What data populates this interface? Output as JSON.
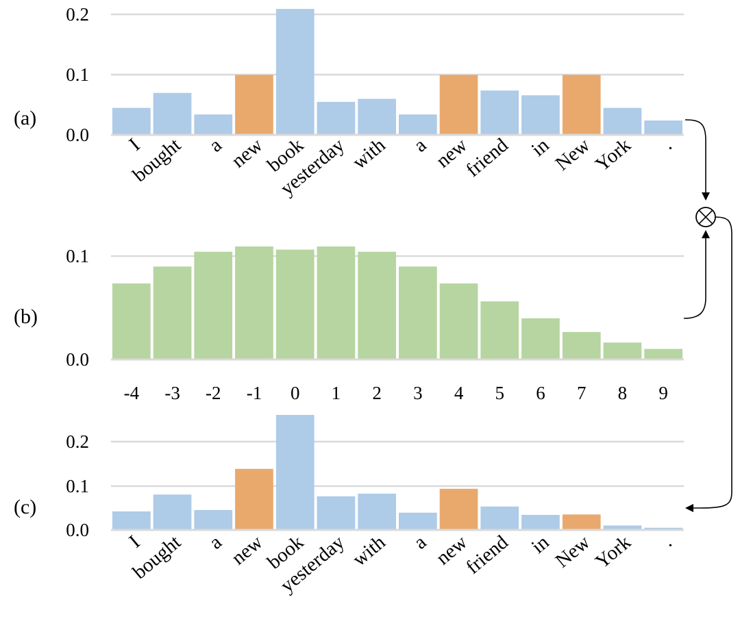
{
  "colors": {
    "default_bar": "#aecbe8",
    "highlight_bar": "#e9a96d",
    "position_bar": "#b6d5a0",
    "grid": "#d9d9d9"
  },
  "operator_symbol": "⊗",
  "chart_data": [
    {
      "type": "bar",
      "panel_label": "(a)",
      "categories": [
        "I",
        "bought",
        "a",
        "new",
        "book",
        "yesterday",
        "with",
        "a",
        "new",
        "friend",
        "in",
        "New",
        "York",
        "."
      ],
      "values": [
        0.045,
        0.07,
        0.034,
        0.1,
        0.21,
        0.055,
        0.06,
        0.034,
        0.1,
        0.074,
        0.066,
        0.1,
        0.045,
        0.024
      ],
      "highlighted": [
        false,
        false,
        false,
        true,
        false,
        false,
        false,
        false,
        true,
        false,
        false,
        true,
        false,
        false
      ],
      "yticks": [
        "0.0",
        "0.1",
        "0.2"
      ],
      "ylim": [
        0,
        0.21
      ],
      "grid": true
    },
    {
      "type": "bar",
      "panel_label": "(b)",
      "categories": [
        "-4",
        "-3",
        "-2",
        "-1",
        "0",
        "1",
        "2",
        "3",
        "4",
        "5",
        "6",
        "7",
        "8",
        "9"
      ],
      "values": [
        0.072,
        0.088,
        0.102,
        0.107,
        0.104,
        0.107,
        0.102,
        0.088,
        0.072,
        0.055,
        0.039,
        0.026,
        0.016,
        0.01
      ],
      "yticks": [
        "0.0",
        "0.1"
      ],
      "ylim": [
        0,
        0.107
      ],
      "grid": true
    },
    {
      "type": "bar",
      "panel_label": "(c)",
      "categories": [
        "I",
        "bought",
        "a",
        "new",
        "book",
        "yesterday",
        "with",
        "a",
        "new",
        "friend",
        "in",
        "New",
        "York",
        "."
      ],
      "values": [
        0.042,
        0.08,
        0.045,
        0.138,
        0.26,
        0.076,
        0.082,
        0.039,
        0.093,
        0.053,
        0.034,
        0.035,
        0.01,
        0.005
      ],
      "highlighted": [
        false,
        false,
        false,
        true,
        false,
        false,
        false,
        false,
        true,
        false,
        false,
        true,
        false,
        false
      ],
      "yticks": [
        "0.0",
        "0.1",
        "0.2"
      ],
      "ylim": [
        0,
        0.26
      ],
      "grid": true
    }
  ]
}
